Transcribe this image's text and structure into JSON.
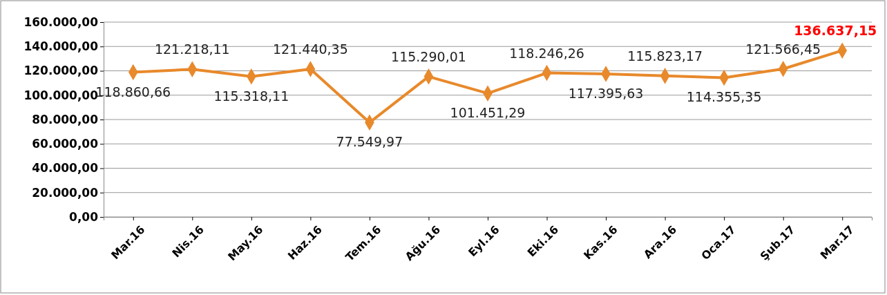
{
  "chart_data": {
    "type": "line",
    "categories": [
      "Mar.16",
      "Nis.16",
      "May.16",
      "Haz.16",
      "Tem.16",
      "Ağu.16",
      "Eyl.16",
      "Eki.16",
      "Kas.16",
      "Ara.16",
      "Oca.17",
      "Şub.17",
      "Mar.17"
    ],
    "series": [
      {
        "color": "#e8892b",
        "values": [
          118860.66,
          121218.11,
          115318.11,
          121440.35,
          77549.97,
          115290.01,
          101451.29,
          118246.26,
          117395.63,
          115823.17,
          114355.35,
          121566.45,
          136637.15
        ],
        "value_labels": [
          "118.860,66",
          "121.218,11",
          "115.318,11",
          "121.440,35",
          "77.549,97",
          "115.290,01",
          "101.451,29",
          "118.246,26",
          "117.395,63",
          "115.823,17",
          "114.355,35",
          "121.566,45",
          "136.637,15"
        ]
      }
    ],
    "ylim": [
      0,
      160000
    ],
    "yticks": [
      {
        "value": 0,
        "label": "0,00"
      },
      {
        "value": 20000,
        "label": "20.000,00"
      },
      {
        "value": 40000,
        "label": "40.000,00"
      },
      {
        "value": 60000,
        "label": "60.000,00"
      },
      {
        "value": 80000,
        "label": "80.000,00"
      },
      {
        "value": 100000,
        "label": "100.000,00"
      },
      {
        "value": 120000,
        "label": "120.000,00"
      },
      {
        "value": 140000,
        "label": "140.000,00"
      },
      {
        "value": 160000,
        "label": "160.000,00"
      }
    ],
    "grid": "y",
    "marker": "diamond",
    "line_style": "solid"
  }
}
